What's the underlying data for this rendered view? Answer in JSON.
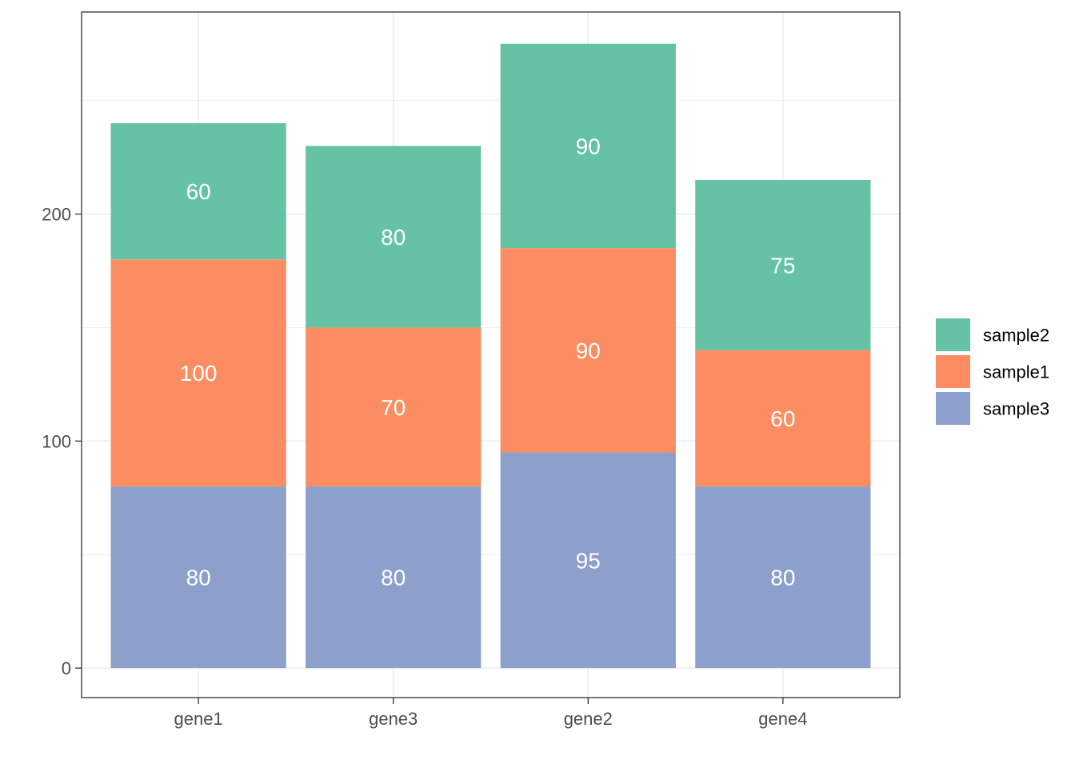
{
  "chart_data": {
    "type": "bar",
    "stacked": true,
    "title": "",
    "xlabel": "",
    "ylabel": "",
    "categories": [
      "gene1",
      "gene3",
      "gene2",
      "gene4"
    ],
    "ylim": [
      -13,
      289
    ],
    "y_ticks": [
      0,
      100,
      200
    ],
    "grid": true,
    "legend_position": "right",
    "series": [
      {
        "name": "sample3",
        "color": "#8DA0CB",
        "values": [
          80,
          80,
          95,
          80
        ]
      },
      {
        "name": "sample1",
        "color": "#FC8D62",
        "values": [
          100,
          70,
          90,
          60
        ]
      },
      {
        "name": "sample2",
        "color": "#66C2A5",
        "values": [
          60,
          80,
          90,
          75
        ]
      }
    ],
    "legend_order": [
      "sample2",
      "sample1",
      "sample3"
    ],
    "data_labels": true,
    "label_color": "#FFFFFF"
  }
}
